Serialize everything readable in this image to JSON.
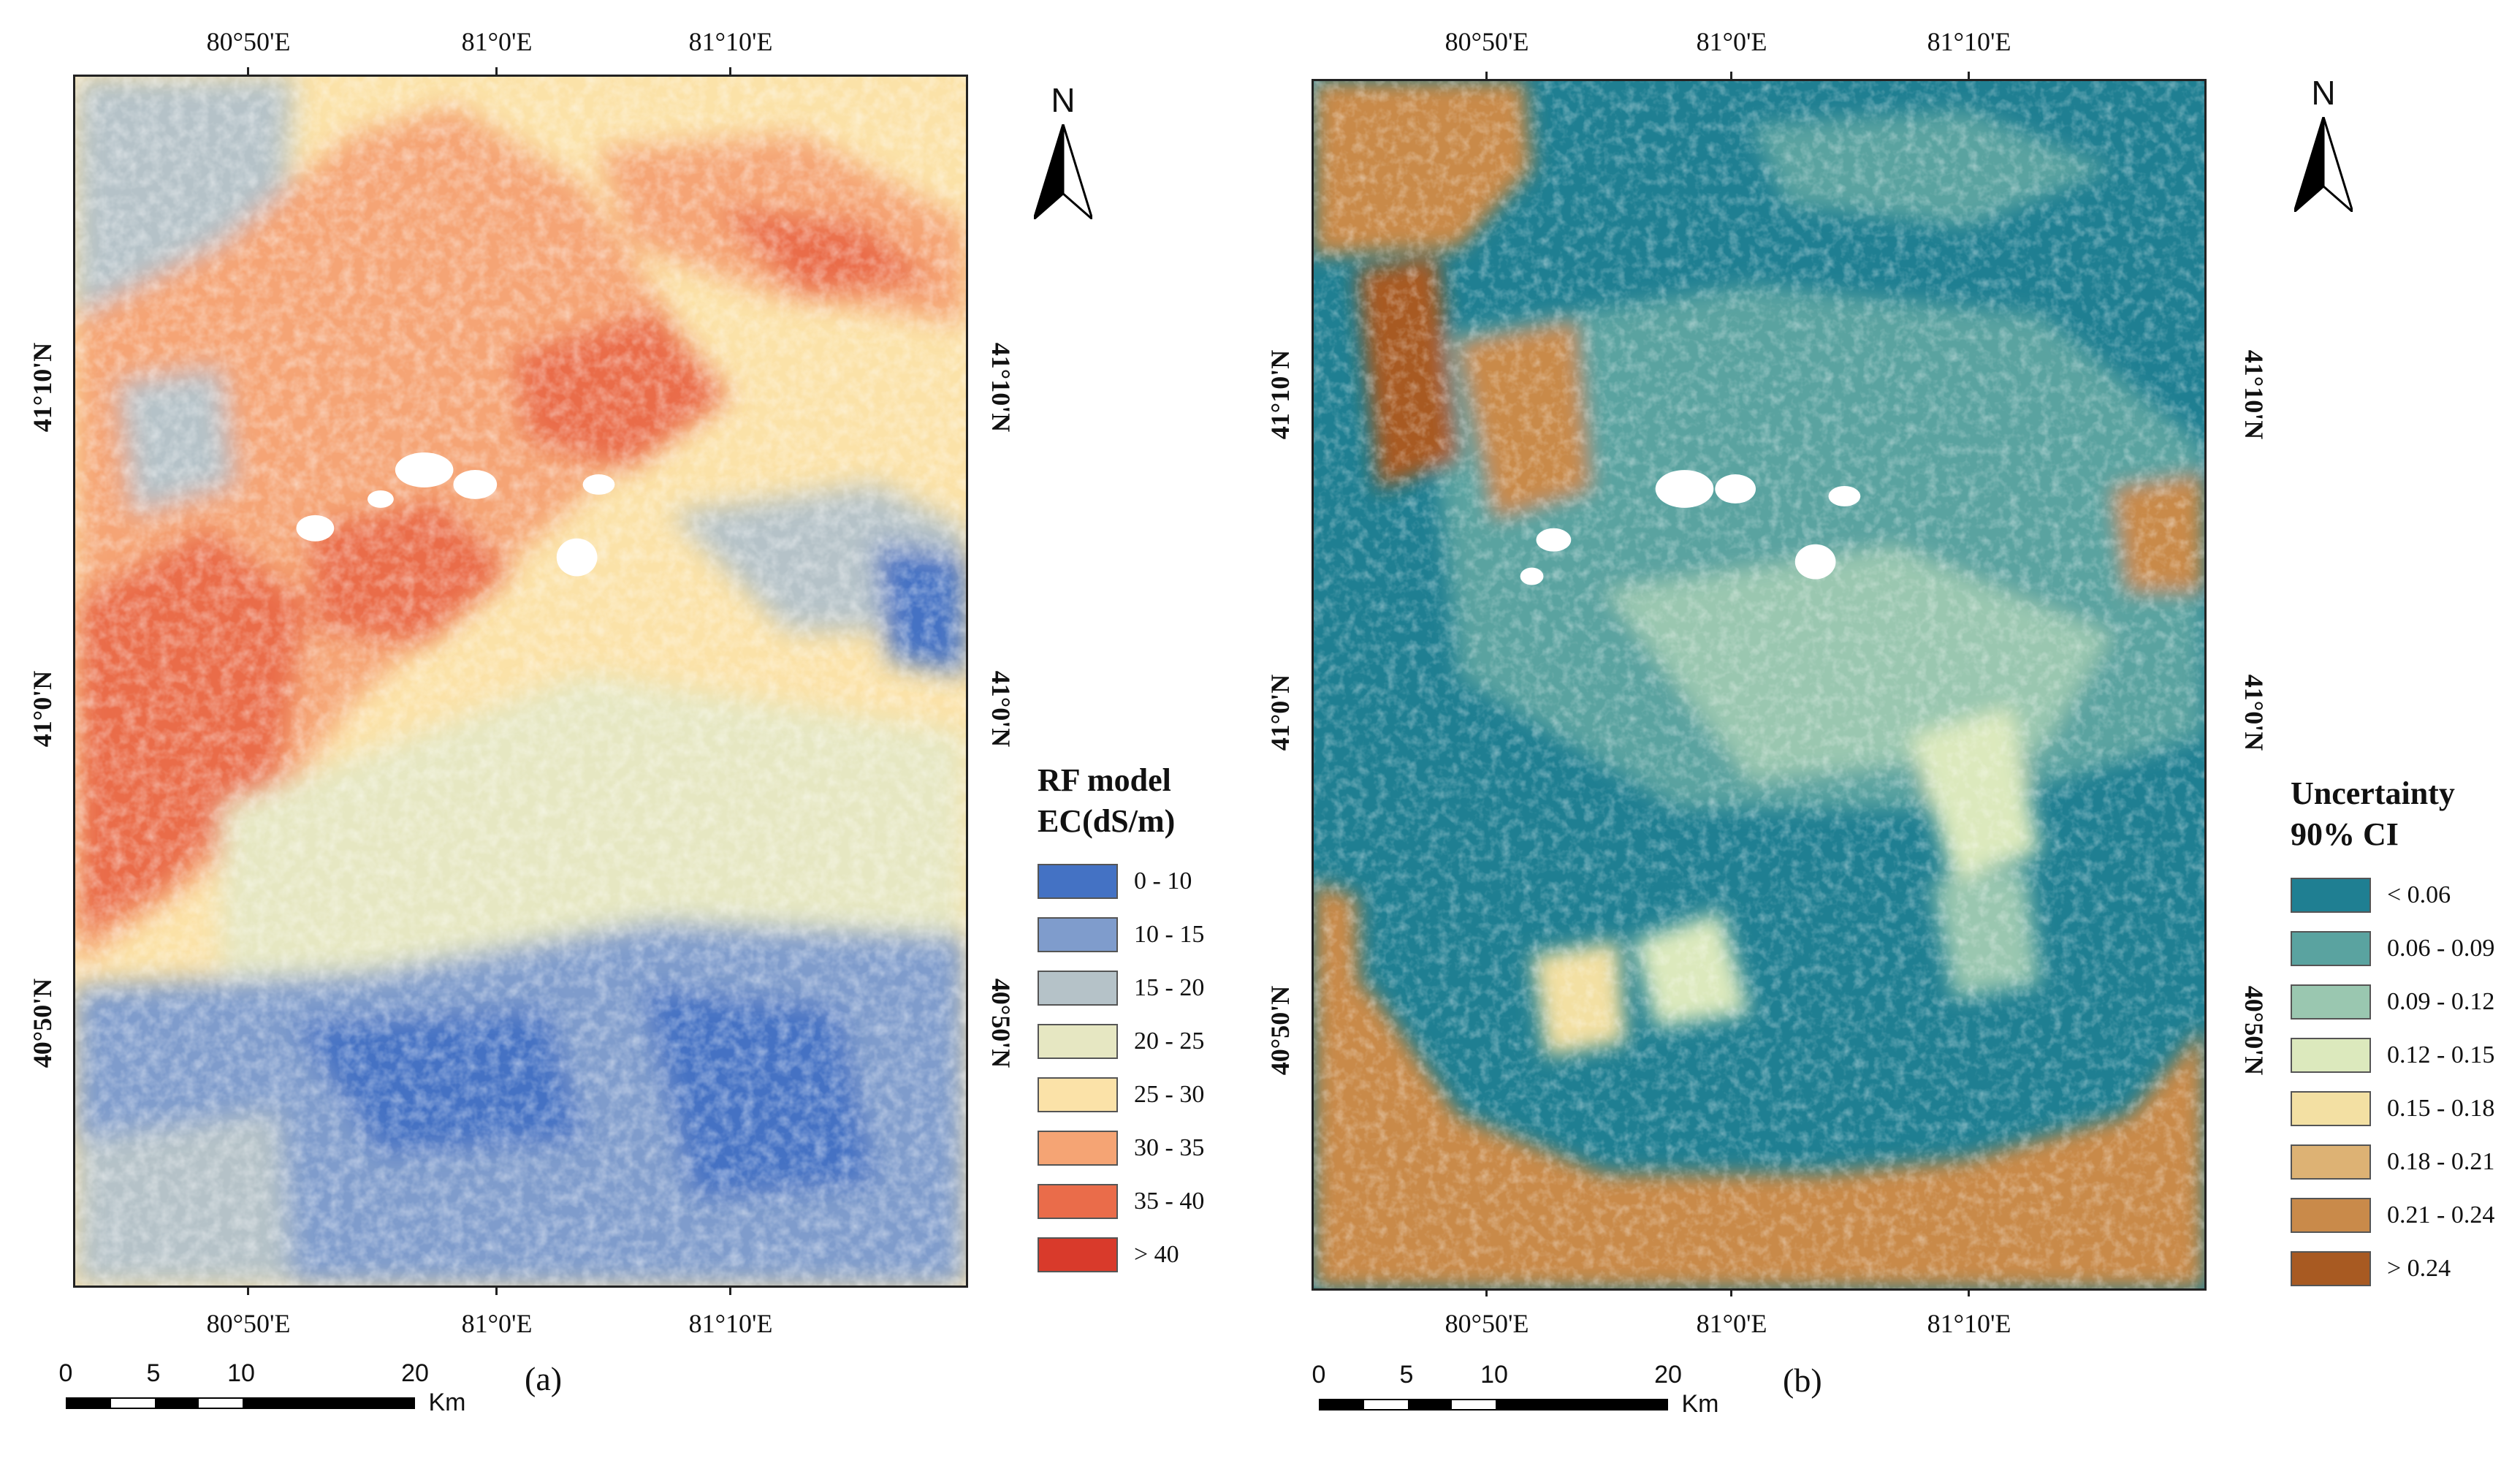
{
  "panels": [
    {
      "id": "a",
      "panel_label": "(a)",
      "lon_labels": [
        "80°50'E",
        "81°0'E",
        "81°10'E"
      ],
      "lat_labels": [
        "41°10'N",
        "41°0'N",
        "40°50'N"
      ],
      "legend": {
        "title_line1": "RF model",
        "title_line2": "EC(dS/m)",
        "items": [
          {
            "label": "0 - 10",
            "color": "#4472c4"
          },
          {
            "label": "10 - 15",
            "color": "#7f9ccc"
          },
          {
            "label": "15 - 20",
            "color": "#b5c2c8"
          },
          {
            "label": "20 - 25",
            "color": "#e6e7c2"
          },
          {
            "label": "25 - 30",
            "color": "#fbe2a8"
          },
          {
            "label": "30 - 35",
            "color": "#f5a474"
          },
          {
            "label": "35 - 40",
            "color": "#ea6c4a"
          },
          {
            "label": "> 40",
            "color": "#d93a2b"
          }
        ]
      },
      "north_label": "N",
      "scale": {
        "ticks": [
          "0",
          "5",
          "10",
          "20"
        ],
        "unit": "Km"
      }
    },
    {
      "id": "b",
      "panel_label": "(b)",
      "lon_labels": [
        "80°50'E",
        "81°0'E",
        "81°10'E"
      ],
      "lat_labels": [
        "41°10'N",
        "41°0'N",
        "40°50'N"
      ],
      "legend": {
        "title_line1": "Uncertainty",
        "title_line2": "90% CI",
        "items": [
          {
            "label": "< 0.06",
            "color": "#1f7f92"
          },
          {
            "label": "0.06 - 0.09",
            "color": "#5aa3a0"
          },
          {
            "label": "0.09 - 0.12",
            "color": "#9ac7b0"
          },
          {
            "label": "0.12 - 0.15",
            "color": "#dce9bd"
          },
          {
            "label": "0.15 - 0.18",
            "color": "#f3e0a3"
          },
          {
            "label": "0.18 - 0.21",
            "color": "#ddb274"
          },
          {
            "label": "0.21 - 0.24",
            "color": "#c98a4a"
          },
          {
            "label": "> 0.24",
            "color": "#a85a22"
          }
        ]
      },
      "north_label": "N",
      "scale": {
        "ticks": [
          "0",
          "5",
          "10",
          "20"
        ],
        "unit": "Km"
      }
    }
  ]
}
